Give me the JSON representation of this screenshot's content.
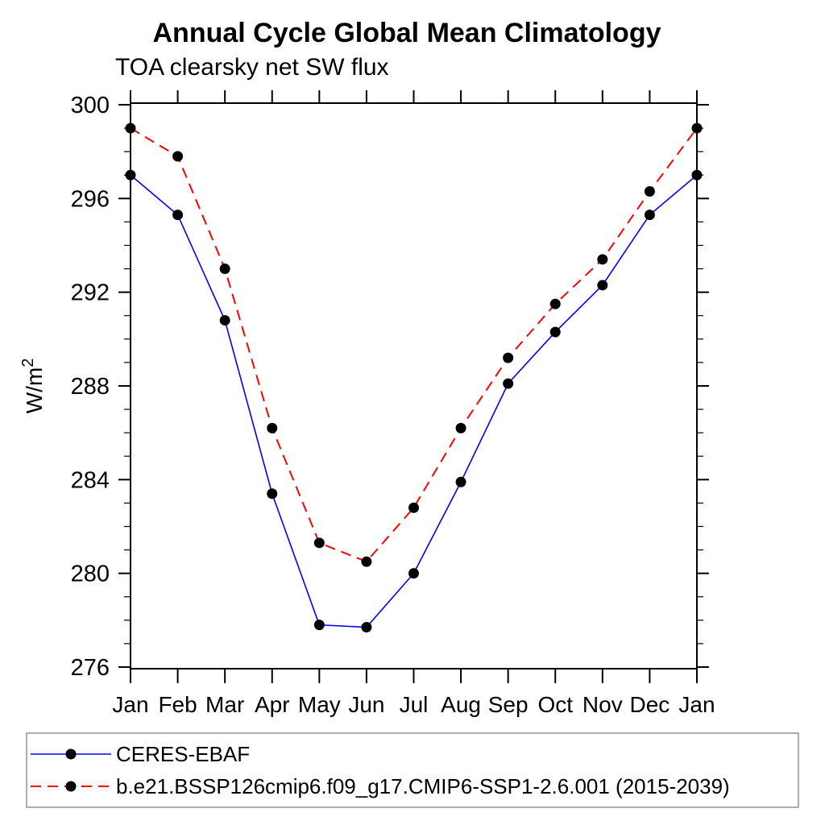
{
  "title": "Annual Cycle Global Mean Climatology",
  "subtitle": "TOA clearsky net SW flux",
  "y_axis_label": "W/m",
  "y_axis_label_superscript": "2",
  "colors": {
    "obs_line": "#0000ff",
    "model_line": "#ff0000",
    "marker": "#000000",
    "axis": "#000000",
    "legend_border": "#a6a6a6",
    "background": "#ffffff"
  },
  "chart_data": {
    "type": "line",
    "x_categories": [
      "Jan",
      "Feb",
      "Mar",
      "Apr",
      "May",
      "Jun",
      "Jul",
      "Aug",
      "Sep",
      "Oct",
      "Nov",
      "Dec",
      "Jan"
    ],
    "series": [
      {
        "name": "CERES-EBAF",
        "color": "#0000ff",
        "style": "solid",
        "marker": "filled-circle",
        "values": [
          297.0,
          295.3,
          290.8,
          283.4,
          277.8,
          277.7,
          280.0,
          283.9,
          288.1,
          290.3,
          292.3,
          295.3,
          297.0
        ]
      },
      {
        "name": "b.e21.BSSP126cmip6.f09_g17.CMIP6-SSP1-2.6.001 (2015-2039)",
        "color": "#ff0000",
        "style": "dashed",
        "marker": "filled-circle",
        "values": [
          299.0,
          297.8,
          293.0,
          286.2,
          281.3,
          280.5,
          282.8,
          286.2,
          289.2,
          291.5,
          293.4,
          296.3,
          299.0
        ]
      }
    ],
    "ylabel": "W/m2",
    "yticks_major": [
      276,
      280,
      284,
      288,
      292,
      296,
      300
    ],
    "y_minor_step": 1,
    "ylim": [
      275.93,
      300.07
    ],
    "grid": false,
    "legend_position": "bottom-left"
  }
}
